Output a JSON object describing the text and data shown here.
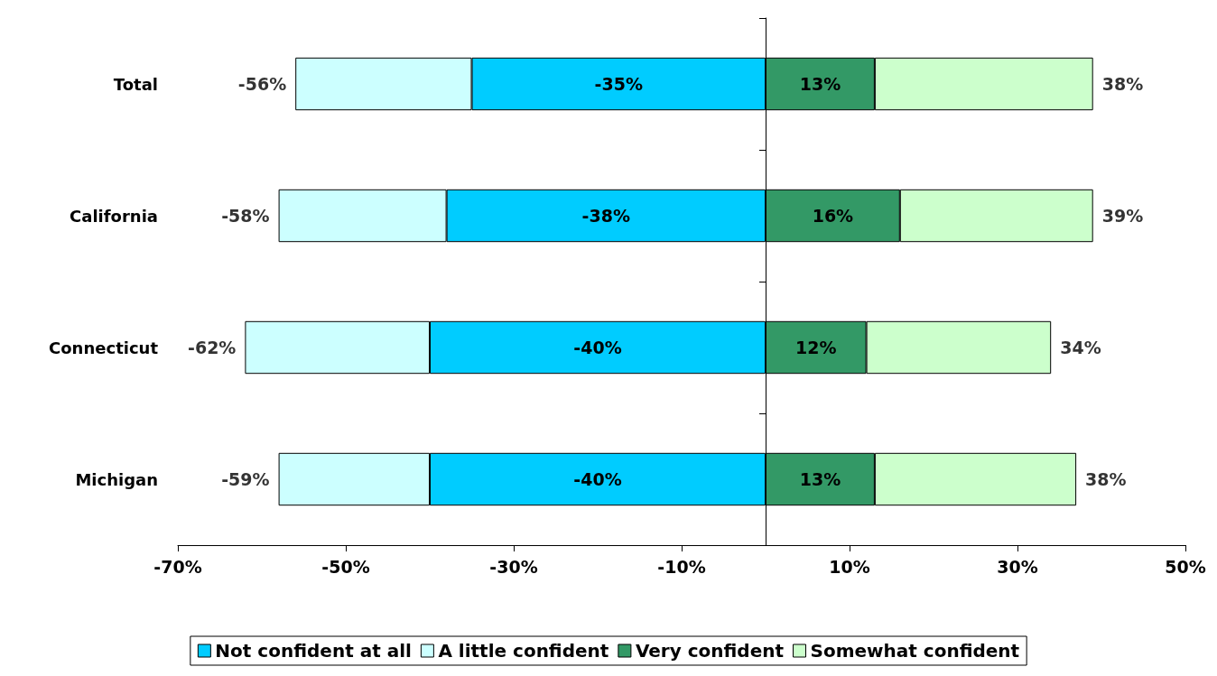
{
  "chart_data": {
    "type": "bar",
    "orientation": "horizontal",
    "stacked": true,
    "categories": [
      "Total",
      "California",
      "Connecticut",
      "Michigan"
    ],
    "series": [
      {
        "name": "Not confident at all",
        "color": "#00ccff",
        "values": [
          -35,
          -38,
          -40,
          -40
        ],
        "value_labels": [
          "-35%",
          "-38%",
          "-40%",
          "-40%"
        ]
      },
      {
        "name": "A little confident",
        "color": "#ccffff",
        "values": [
          -21,
          -20,
          -22,
          -18
        ]
      },
      {
        "name": "Very confident",
        "color": "#339966",
        "values": [
          13,
          16,
          12,
          13
        ],
        "value_labels": [
          "13%",
          "16%",
          "12%",
          "13%"
        ]
      },
      {
        "name": "Somewhat confident",
        "color": "#ccffcc",
        "values": [
          26,
          23,
          22,
          24
        ]
      }
    ],
    "xlim": [
      -70,
      50
    ],
    "xticks": [
      {
        "value": -70,
        "label": "-70%"
      },
      {
        "value": -50,
        "label": "-50%"
      },
      {
        "value": -30,
        "label": "-30%"
      },
      {
        "value": -10,
        "label": "-10%"
      },
      {
        "value": 10,
        "label": "10%"
      },
      {
        "value": 30,
        "label": "30%"
      },
      {
        "value": 50,
        "label": "50%"
      }
    ],
    "annotations": [
      {
        "text": "-56%",
        "x": -56,
        "y": "Total"
      },
      {
        "text": "38%",
        "x": 39,
        "y": "Total"
      },
      {
        "text": "-58%",
        "x": -58,
        "y": "California"
      },
      {
        "text": "39%",
        "x": 39,
        "y": "California"
      },
      {
        "text": "-62%",
        "x": -62,
        "y": "Connecticut"
      },
      {
        "text": "34%",
        "x": 34,
        "y": "Connecticut"
      },
      {
        "text": "-59%",
        "x": -58,
        "y": "Michigan"
      },
      {
        "text": "38%",
        "x": 37,
        "y": "Michigan"
      }
    ],
    "grid": false,
    "legend": "bottom"
  }
}
